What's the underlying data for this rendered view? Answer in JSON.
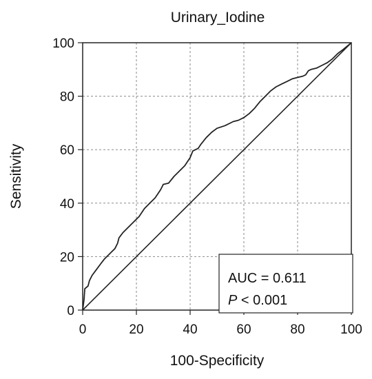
{
  "chart_data": {
    "type": "line",
    "title": "Urinary_Iodine",
    "xlabel": "100-Specificity",
    "ylabel": "Sensitivity",
    "xlim": [
      0,
      100
    ],
    "ylim": [
      0,
      100
    ],
    "xticks": [
      0,
      20,
      40,
      60,
      80,
      100
    ],
    "yticks": [
      0,
      20,
      40,
      60,
      80,
      100
    ],
    "grid": true,
    "series": [
      {
        "values": [
          [
            0,
            0
          ],
          [
            0.5,
            4
          ],
          [
            0.8,
            8
          ],
          [
            2,
            9
          ],
          [
            2.5,
            11
          ],
          [
            3.5,
            13
          ],
          [
            5,
            15
          ],
          [
            6.5,
            17
          ],
          [
            8,
            19
          ],
          [
            9,
            20
          ],
          [
            11,
            22
          ],
          [
            12,
            23
          ],
          [
            13,
            25
          ],
          [
            13.5,
            27
          ],
          [
            15,
            29
          ],
          [
            17,
            31
          ],
          [
            19,
            33
          ],
          [
            21,
            35
          ],
          [
            23,
            38
          ],
          [
            25,
            40
          ],
          [
            27,
            42
          ],
          [
            29,
            45
          ],
          [
            30,
            47
          ],
          [
            32,
            47.5
          ],
          [
            34,
            50
          ],
          [
            36,
            52
          ],
          [
            38,
            54
          ],
          [
            40,
            57
          ],
          [
            41,
            59.5
          ],
          [
            43,
            60.5
          ],
          [
            44,
            62
          ],
          [
            46,
            64.5
          ],
          [
            48,
            66.5
          ],
          [
            50,
            68
          ],
          [
            53,
            69
          ],
          [
            56,
            70.5
          ],
          [
            58,
            71
          ],
          [
            60,
            72
          ],
          [
            62,
            73.5
          ],
          [
            64,
            75.5
          ],
          [
            66,
            78
          ],
          [
            68,
            80
          ],
          [
            70,
            82
          ],
          [
            72,
            83.5
          ],
          [
            74,
            84.5
          ],
          [
            76,
            85.5
          ],
          [
            78,
            86.5
          ],
          [
            80,
            87
          ],
          [
            82,
            87.5
          ],
          [
            83,
            88
          ],
          [
            84,
            89.5
          ],
          [
            85,
            90
          ],
          [
            87,
            90.5
          ],
          [
            89,
            91.5
          ],
          [
            91,
            92.5
          ],
          [
            93,
            94
          ],
          [
            95,
            96
          ],
          [
            97,
            97.5
          ],
          [
            100,
            100
          ]
        ]
      },
      {
        "values": [
          [
            0,
            0
          ],
          [
            100,
            100
          ]
        ]
      }
    ],
    "annotation": {
      "auc_text": "AUC = 0.611",
      "p_letter": "P",
      "p_rest": " < 0.001"
    }
  }
}
